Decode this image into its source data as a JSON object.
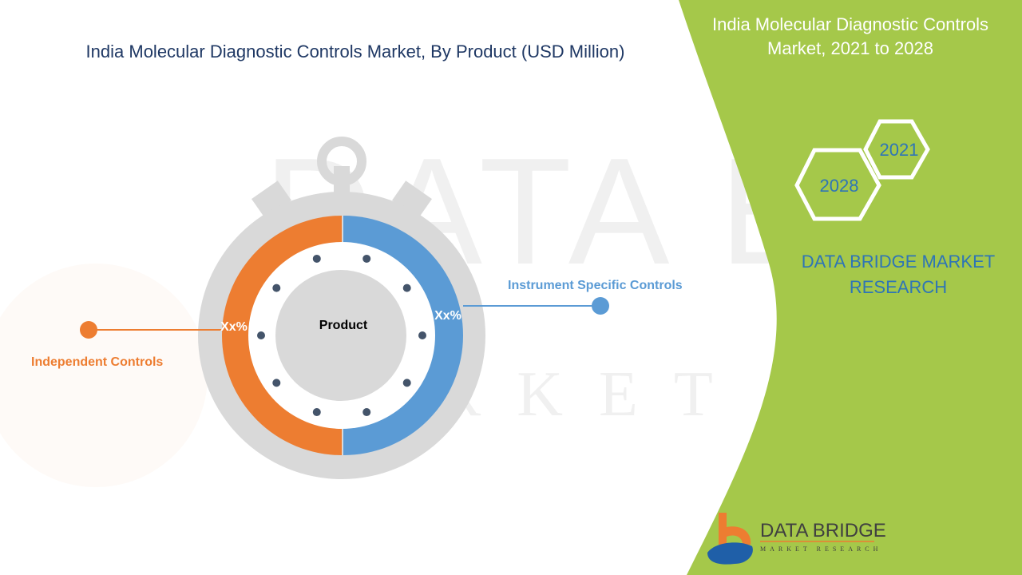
{
  "title": "India Molecular Diagnostic Controls Market, By Product (USD Million)",
  "side_title": "India Molecular Diagnostic Controls Market, 2021 to 2028",
  "years": [
    "2021",
    "2028"
  ],
  "brand_text": "DATA BRIDGE MARKET RESEARCH",
  "logo": {
    "name": "DATA BRIDGE",
    "tagline": "MARKET RESEARCH"
  },
  "watermark": "DATA BRIDGE MARKET RESEARCH",
  "chart_data": {
    "type": "pie",
    "center_label": "Product",
    "segments": [
      {
        "name": "Instrument Specific Controls",
        "label": "Xx%",
        "color": "#5b9bd5"
      },
      {
        "name": "Independent Controls",
        "label": "Xx%",
        "color": "#ed7d31"
      }
    ]
  },
  "colors": {
    "green": "#a5c84a",
    "orange": "#ed7d31",
    "blue": "#5b9bd5",
    "gray": "#d9d9d9",
    "navy": "#1f3864"
  }
}
